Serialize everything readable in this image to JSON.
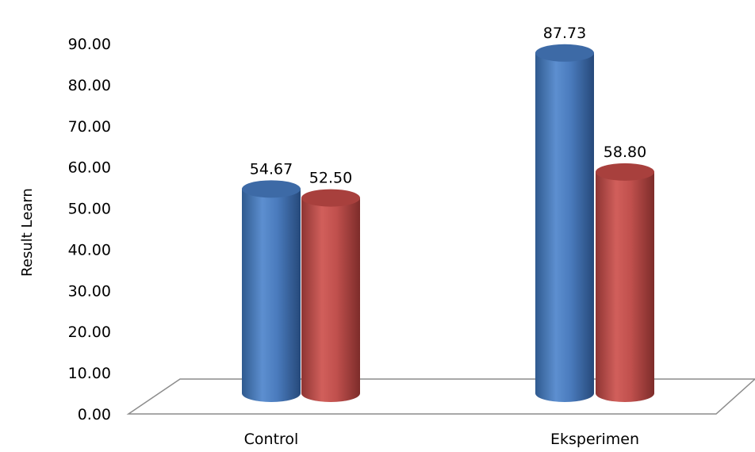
{
  "chart_data": {
    "type": "bar",
    "style": "3d-cylinder",
    "ylabel": "Result  Learn",
    "xlabel": "",
    "categories": [
      "Control",
      "Eksperimen"
    ],
    "ylim": [
      0,
      90
    ],
    "yticks": [
      "0.00",
      "10.00",
      "20.00",
      "30.00",
      "40.00",
      "50.00",
      "60.00",
      "70.00",
      "80.00",
      "90.00"
    ],
    "series": [
      {
        "color": "#4f81bd",
        "values": [
          54.67,
          87.73
        ],
        "labels": [
          "54.67",
          "87.73"
        ]
      },
      {
        "color": "#c0504d",
        "values": [
          52.5,
          58.8
        ],
        "labels": [
          "52.50",
          "58.80"
        ]
      }
    ],
    "grid": false,
    "legend": "none"
  }
}
